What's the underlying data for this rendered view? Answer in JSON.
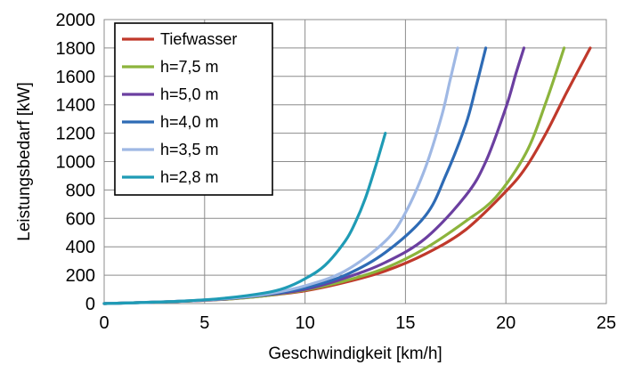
{
  "chart_data": {
    "type": "line",
    "title": "",
    "xlabel": "Geschwindigkeit [km/h]",
    "ylabel": "Leistungsbedarf [kW]",
    "xlim": [
      0,
      25
    ],
    "ylim": [
      0,
      2000
    ],
    "xticks": [
      "0",
      "5",
      "10",
      "15",
      "20",
      "25"
    ],
    "yticks": [
      "0",
      "200",
      "400",
      "600",
      "800",
      "1000",
      "1200",
      "1400",
      "1600",
      "1800",
      "2000"
    ],
    "grid": true,
    "legend_position": "top-left",
    "series": [
      {
        "name": "Tiefwasser",
        "color": "#c0392b",
        "x": [
          0,
          2,
          4,
          6,
          8,
          10,
          12,
          14,
          16,
          18,
          20,
          21,
          22,
          23,
          24.2
        ],
        "y": [
          0,
          8,
          17,
          30,
          55,
          90,
          150,
          230,
          350,
          520,
          790,
          960,
          1200,
          1480,
          1800
        ]
      },
      {
        "name": "h=7,5 m",
        "color": "#8cb43c",
        "x": [
          0,
          2,
          4,
          6,
          8,
          10,
          12,
          14,
          16,
          18,
          19.5,
          21,
          22,
          22.9
        ],
        "y": [
          0,
          8,
          17,
          30,
          55,
          95,
          160,
          250,
          390,
          580,
          750,
          1060,
          1420,
          1800
        ]
      },
      {
        "name": "h=5,0 m",
        "color": "#6b3fa0",
        "x": [
          0,
          2,
          4,
          6,
          8,
          10,
          12,
          14,
          16,
          18,
          19,
          20,
          20.5,
          20.9
        ],
        "y": [
          0,
          8,
          17,
          32,
          60,
          100,
          180,
          290,
          460,
          760,
          1000,
          1380,
          1620,
          1800
        ]
      },
      {
        "name": "h=4,0 m",
        "color": "#2e6bb5",
        "x": [
          0,
          2,
          4,
          6,
          8,
          10,
          12,
          14,
          16,
          17,
          18,
          18.5,
          19
        ],
        "y": [
          0,
          8,
          18,
          34,
          62,
          110,
          200,
          360,
          620,
          900,
          1260,
          1520,
          1800
        ]
      },
      {
        "name": "h=3,5 m",
        "color": "#9fb8e4",
        "x": [
          0,
          2,
          4,
          6,
          8,
          10,
          12,
          14,
          15,
          16,
          16.8,
          17.2,
          17.6
        ],
        "y": [
          0,
          8,
          18,
          35,
          65,
          125,
          230,
          440,
          640,
          960,
          1320,
          1560,
          1800
        ]
      },
      {
        "name": "h=2,8 m",
        "color": "#1f9bb5",
        "x": [
          0,
          2,
          4,
          6,
          8,
          9,
          10,
          11,
          12,
          12.5,
          13,
          13.5,
          14
        ],
        "y": [
          0,
          8,
          18,
          38,
          75,
          110,
          175,
          270,
          440,
          570,
          740,
          960,
          1200
        ]
      }
    ]
  }
}
